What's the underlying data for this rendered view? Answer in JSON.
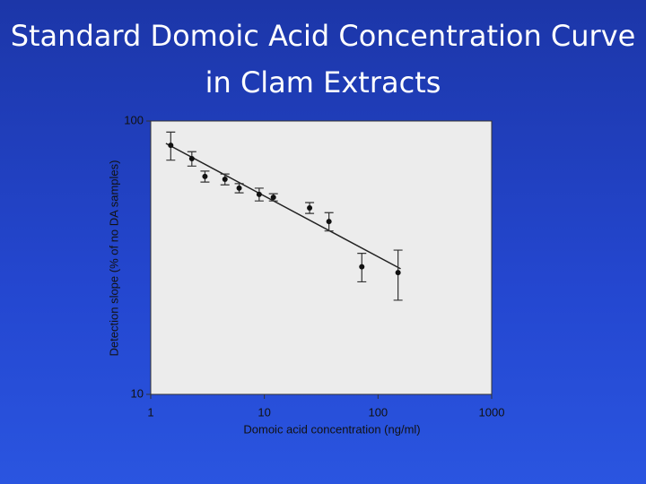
{
  "chart_data": {
    "type": "scatter",
    "title": "Standard Domoic Acid Concentration Curve in Clam Extracts",
    "x_label": "Domoic acid concentration (ng/ml)",
    "y_label": "Detection slope (% of no DA samples)",
    "x": [
      1.5,
      2.3,
      3,
      4.5,
      6,
      9,
      12,
      25,
      37,
      72,
      150
    ],
    "values": [
      81.5,
      72.8,
      62.7,
      61.2,
      56.8,
      53.9,
      52.6,
      48.1,
      42.9,
      29.3,
      27.9
    ],
    "errors": [
      9.6,
      4.4,
      2.9,
      2.8,
      2.2,
      2.9,
      1.6,
      2.2,
      3.3,
      3.5,
      5.8
    ],
    "trend_line": {
      "x": [
        1.36,
        158
      ],
      "values": [
        82.8,
        28.8
      ]
    },
    "color": "#111111",
    "xlim": [
      1,
      1000
    ],
    "xticks": [
      1,
      10,
      100,
      1000
    ],
    "ylim": [
      10,
      100
    ],
    "yticks": [
      10,
      100
    ],
    "x_log": true,
    "y_log": true
  }
}
